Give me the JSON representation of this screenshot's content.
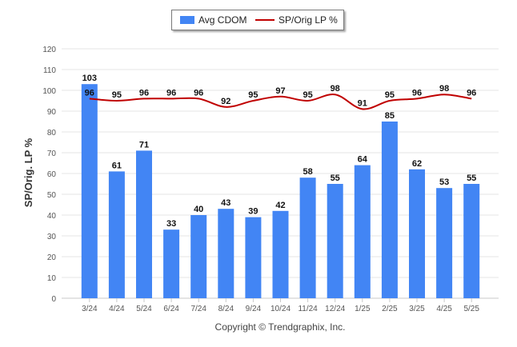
{
  "chart_data": {
    "type": "bar",
    "categories": [
      "3/24",
      "4/24",
      "5/24",
      "6/24",
      "7/24",
      "8/24",
      "9/24",
      "10/24",
      "11/24",
      "12/24",
      "1/25",
      "2/25",
      "3/25",
      "4/25",
      "5/25"
    ],
    "series": [
      {
        "name": "Avg CDOM",
        "type": "bar",
        "values": [
          103,
          61,
          71,
          33,
          40,
          43,
          39,
          42,
          58,
          55,
          64,
          85,
          62,
          53,
          55
        ],
        "color": "#4285f4"
      },
      {
        "name": "SP/Orig LP %",
        "type": "line",
        "values": [
          96,
          95,
          96,
          96,
          96,
          92,
          95,
          97,
          95,
          98,
          91,
          95,
          96,
          98,
          96
        ],
        "color": "#c00000"
      }
    ],
    "ylabel": "SP/Orig. LP %",
    "ylim": [
      0,
      120
    ],
    "yticks": [
      0,
      10,
      20,
      30,
      40,
      50,
      60,
      70,
      80,
      90,
      100,
      110,
      120
    ],
    "grid": true,
    "legend": "top-center"
  },
  "footer": "Copyright © Trendgraphix, Inc."
}
